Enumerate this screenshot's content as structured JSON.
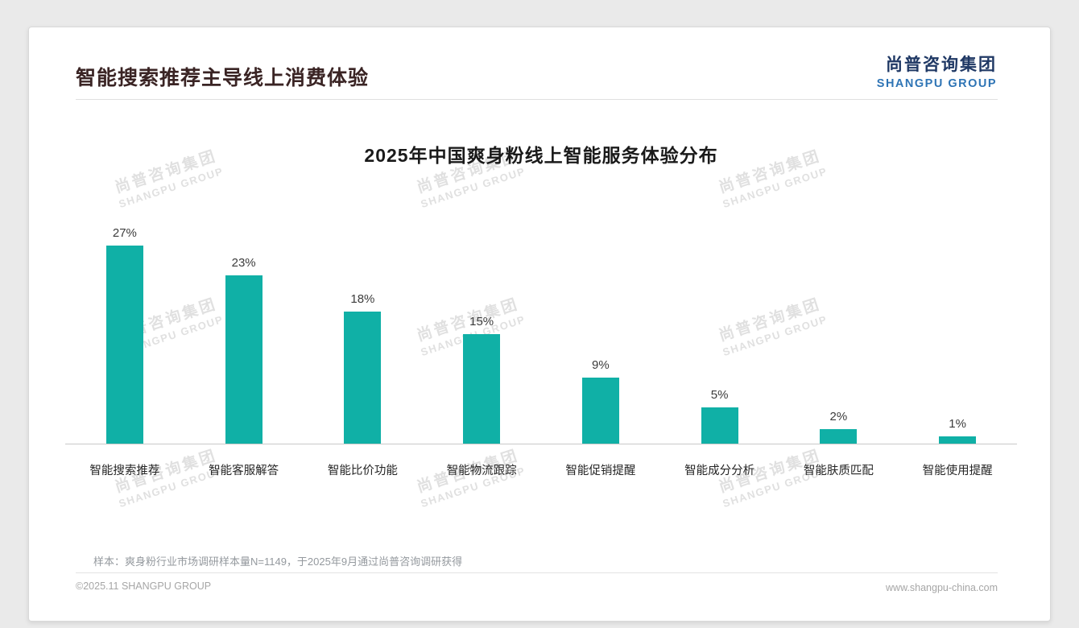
{
  "page": {
    "header": {
      "title": "智能搜索推荐主导线上消费体验"
    },
    "logo": {
      "cn": "尚普咨询集团",
      "en": "SHANGPU GROUP"
    },
    "watermark": {
      "cn": "尚普咨询集团",
      "en": "SHANGPU GROUP"
    },
    "footnote": "样本：爽身粉行业市场调研样本量N=1149，于2025年9月通过尚普咨询调研获得",
    "footer": {
      "left": "©2025.11 SHANGPU GROUP",
      "right": "www.shangpu-china.com"
    }
  },
  "colors": {
    "bar_teal": "#10B0A6",
    "logo_navy": "#1F3864",
    "logo_blue": "#2E74B5",
    "header_title": "#3A2424"
  },
  "chart_data": {
    "type": "bar",
    "title": "2025年中国爽身粉线上智能服务体验分布",
    "categories": [
      "智能搜索推荐",
      "智能客服解答",
      "智能比价功能",
      "智能物流跟踪",
      "智能促销提醒",
      "智能成分分析",
      "智能肤质匹配",
      "智能使用提醒"
    ],
    "values": [
      27,
      23,
      18,
      15,
      9,
      5,
      2,
      1
    ],
    "value_labels": [
      "27%",
      "23%",
      "18%",
      "15%",
      "9%",
      "5%",
      "2%",
      "1%"
    ],
    "xlabel": "",
    "ylabel": "",
    "ylim": [
      0,
      30
    ],
    "grid": false,
    "legend": false
  }
}
